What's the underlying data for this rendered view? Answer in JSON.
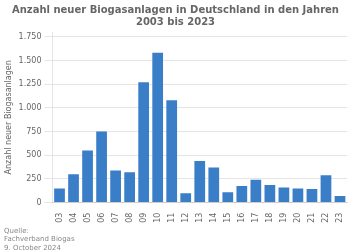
{
  "chart_data": {
    "type": "bar",
    "title": "Anzahl neuer Biogasanlagen in Deutschland in den Jahren 2003 bis 2023",
    "y_label": "Anzahl neuer Biogasanlagen",
    "categories": [
      "03",
      "04",
      "05",
      "06",
      "07",
      "08",
      "09",
      "10",
      "11",
      "12",
      "13",
      "14",
      "15",
      "16",
      "17",
      "18",
      "19",
      "20",
      "21",
      "22",
      "23"
    ],
    "values": [
      150,
      300,
      550,
      750,
      340,
      320,
      1270,
      1580,
      1080,
      100,
      440,
      370,
      110,
      175,
      240,
      185,
      160,
      150,
      145,
      290,
      70
    ],
    "color": "#3a7ec8",
    "ylim": [
      0,
      1800
    ],
    "yticks": [
      0,
      250,
      500,
      750,
      {
        "value": 1000,
        "label": "1.000"
      },
      {
        "value": 1250,
        "label": "1.250"
      },
      {
        "value": 1500,
        "label": "1.500"
      },
      {
        "value": 1750,
        "label": "1.750"
      }
    ],
    "grid": true,
    "annotations": [
      "Quelle:",
      "Fachverband Biogas",
      "9. October 2024"
    ]
  }
}
